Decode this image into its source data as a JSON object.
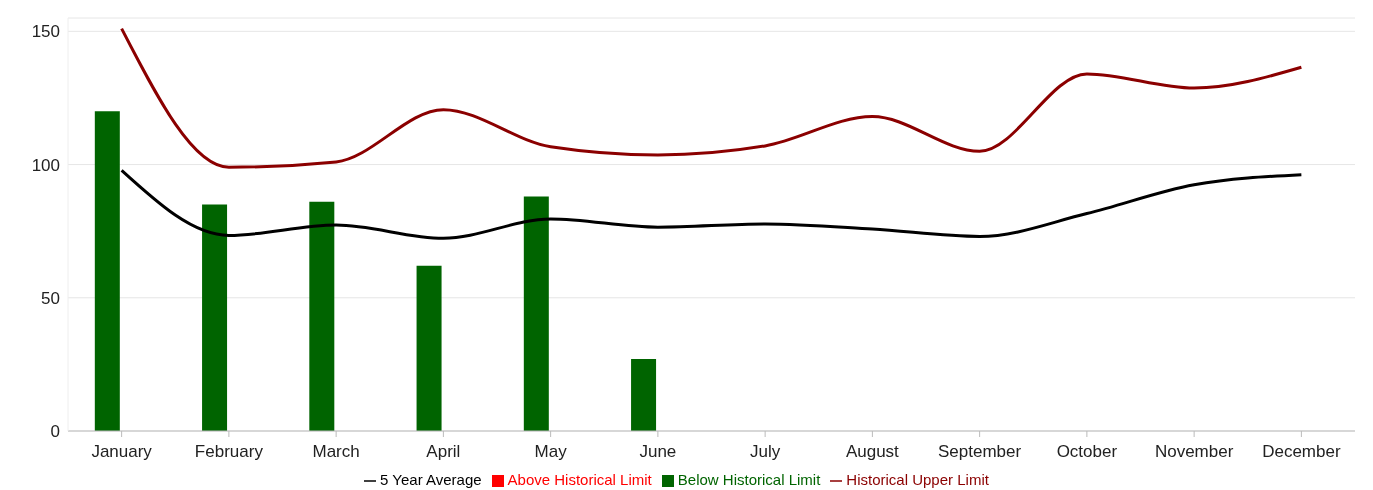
{
  "chart_data": {
    "type": "bar",
    "categories": [
      "January",
      "February",
      "March",
      "April",
      "May",
      "June",
      "July",
      "August",
      "September",
      "October",
      "November",
      "December"
    ],
    "series": [
      {
        "name": "Below Historical Limit",
        "color": "#006400",
        "values": [
          120,
          85,
          86,
          62,
          88,
          27,
          null,
          null,
          null,
          null,
          null,
          null
        ]
      },
      {
        "name": "Above Historical Limit",
        "color": "#ff0000",
        "values": [
          null,
          null,
          null,
          null,
          null,
          null,
          null,
          null,
          null,
          null,
          null,
          null
        ]
      },
      {
        "name": "5 Year Average",
        "type": "line",
        "color": "#000000",
        "values": [
          97.8,
          73.4,
          77.3,
          72.3,
          79.6,
          76.5,
          77.7,
          75.8,
          73,
          81.6,
          92.4,
          96.2
        ]
      },
      {
        "name": "Historical Upper Limit",
        "type": "line",
        "color": "#8b0000",
        "values": [
          151,
          99,
          101,
          120.6,
          106.7,
          103.6,
          107,
          118,
          105,
          134,
          128.7,
          136.5
        ]
      }
    ],
    "ylim": [
      0,
      155
    ],
    "yticks": [
      0,
      50,
      100,
      150
    ],
    "grid": "y",
    "legend": "bottom",
    "marker": "none",
    "line_style": "solid"
  }
}
